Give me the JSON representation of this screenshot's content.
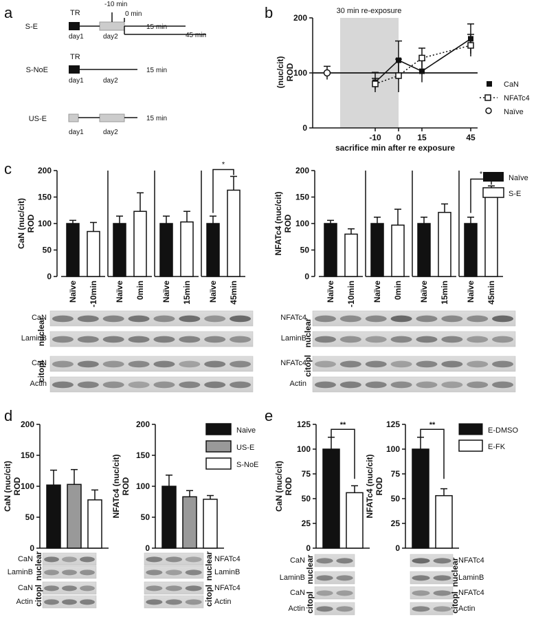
{
  "panels": [
    "a",
    "b",
    "c",
    "d",
    "e"
  ],
  "panel_a": {
    "rows": [
      {
        "name": "S-E",
        "tr": "TR",
        "days": [
          "day1",
          "day2"
        ],
        "marks": [
          "-10 min",
          "0 min"
        ],
        "ends": [
          "15 min",
          "45 min"
        ]
      },
      {
        "name": "S-NoE",
        "tr": "TR",
        "days": [
          "day1",
          "day2"
        ],
        "ends": [
          "15 min"
        ]
      },
      {
        "name": "US-E",
        "days": [
          "day1",
          "day2"
        ],
        "ends": [
          "15 min"
        ]
      }
    ]
  },
  "panel_b": {
    "shade_label": "30 min re-exposure",
    "ylabel": "(nuc/cit)\nROD",
    "xlabel": "sacrifice min after re exposure",
    "yticks": [
      "0",
      "100",
      "200"
    ],
    "xticks": [
      "-10",
      "0",
      "15",
      "45"
    ],
    "legend": [
      "CaN",
      "NFATc4",
      "Naïve"
    ]
  },
  "panel_c": {
    "left_ylabel": "CaN (nuc/cit)\nROD",
    "right_ylabel": "NFATc4 (nuc/cit)\nROD",
    "yticks": [
      "0",
      "50",
      "100",
      "150",
      "200"
    ],
    "xcats": [
      [
        "Naïve",
        "-10min"
      ],
      [
        "Naïve",
        "0min"
      ],
      [
        "Naïve",
        "15min"
      ],
      [
        "Naïve",
        "45min"
      ]
    ],
    "legend": [
      "Naïve",
      "S-E"
    ],
    "star": "*",
    "left_blots": [
      "CaN",
      "LaminB",
      "CaN",
      "Actin"
    ],
    "right_blots": [
      "NFATc4",
      "LaminB",
      "NFATc4",
      "Actin"
    ],
    "side": [
      "nuclear",
      "citopl"
    ]
  },
  "panel_d": {
    "left_ylabel": "CaN (nuc/cit)\nROD",
    "right_ylabel": "NFATc4 (nuc/cit)\nROD",
    "yticks": [
      "0",
      "50",
      "100",
      "150",
      "200"
    ],
    "legend": [
      "Naive",
      "US-E",
      "S-NoE"
    ],
    "left_blots": [
      "CaN",
      "LaminB",
      "CaN",
      "Actin"
    ],
    "right_blots": [
      "NFATc4",
      "LaminB",
      "NFATc4",
      "Actin"
    ],
    "side": [
      "nuclear",
      "citopl"
    ]
  },
  "panel_e": {
    "left_ylabel": "CaN (nuc/cit)\nROD",
    "right_ylabel": "NFATc4 (nuc/cit)\nROD",
    "yticks": [
      "0",
      "25",
      "50",
      "75",
      "100",
      "125"
    ],
    "legend": [
      "E-DMSO",
      "E-FK"
    ],
    "star": "**",
    "left_blots": [
      "CaN",
      "LaminB",
      "CaN",
      "Actin"
    ],
    "right_blots": [
      "NFATc4",
      "LaminB",
      "NFATc4",
      "Actin"
    ],
    "side": [
      "nuclear",
      "citopl"
    ]
  },
  "chart_data": [
    {
      "type": "line",
      "x": [
        -10,
        0,
        15,
        45
      ],
      "series": [
        {
          "name": "CaN",
          "values": [
            83,
            123,
            103,
            162
          ],
          "errors": [
            18,
            35,
            20,
            27
          ]
        },
        {
          "name": "NFATc4",
          "values": [
            80,
            95,
            127,
            150
          ],
          "errors": [
            10,
            30,
            18,
            20
          ]
        },
        {
          "name": "Naïve",
          "x": [
            -45
          ],
          "values": [
            100
          ],
          "errors": [
            12
          ]
        }
      ],
      "ylim": [
        0,
        200
      ],
      "xlabel": "sacrifice min after re exposure",
      "ylabel": "(nuc/cit) ROD"
    },
    {
      "type": "bar",
      "categories": [
        "-10min",
        "0min",
        "15min",
        "45min"
      ],
      "series": [
        {
          "name": "Naïve",
          "values": [
            100,
            100,
            100,
            100
          ],
          "errors": [
            6,
            14,
            14,
            14
          ]
        },
        {
          "name": "S-E",
          "values": [
            85,
            123,
            103,
            163
          ],
          "errors": [
            17,
            35,
            20,
            26
          ]
        }
      ],
      "ylim": [
        0,
        200
      ],
      "ylabel": "CaN (nuc/cit) ROD"
    },
    {
      "type": "bar",
      "categories": [
        "-10min",
        "0min",
        "15min",
        "45min"
      ],
      "series": [
        {
          "name": "Naïve",
          "values": [
            100,
            100,
            100,
            100
          ],
          "errors": [
            6,
            12,
            12,
            12
          ]
        },
        {
          "name": "S-E",
          "values": [
            80,
            97,
            121,
            151
          ],
          "errors": [
            10,
            30,
            16,
            20
          ]
        }
      ],
      "ylim": [
        0,
        200
      ],
      "ylabel": "NFATc4 (nuc/cit) ROD"
    },
    {
      "type": "bar",
      "categories": [
        "Naive",
        "US-E",
        "S-NoE"
      ],
      "values": [
        102,
        103,
        78
      ],
      "errors": [
        24,
        24,
        16
      ],
      "ylim": [
        0,
        200
      ],
      "ylabel": "CaN (nuc/cit) ROD"
    },
    {
      "type": "bar",
      "categories": [
        "Naive",
        "US-E",
        "S-NoE"
      ],
      "values": [
        100,
        83,
        79
      ],
      "errors": [
        18,
        10,
        6
      ],
      "ylim": [
        0,
        200
      ],
      "ylabel": "NFATc4 (nuc/cit) ROD"
    },
    {
      "type": "bar",
      "categories": [
        "E-DMSO",
        "E-FK"
      ],
      "values": [
        100,
        56
      ],
      "errors": [
        12,
        7
      ],
      "ylim": [
        0,
        125
      ],
      "ylabel": "CaN (nuc/cit) ROD"
    },
    {
      "type": "bar",
      "categories": [
        "E-DMSO",
        "E-FK"
      ],
      "values": [
        100,
        53
      ],
      "errors": [
        12,
        7
      ],
      "ylim": [
        0,
        125
      ],
      "ylabel": "NFATc4 (nuc/cit) ROD"
    }
  ]
}
